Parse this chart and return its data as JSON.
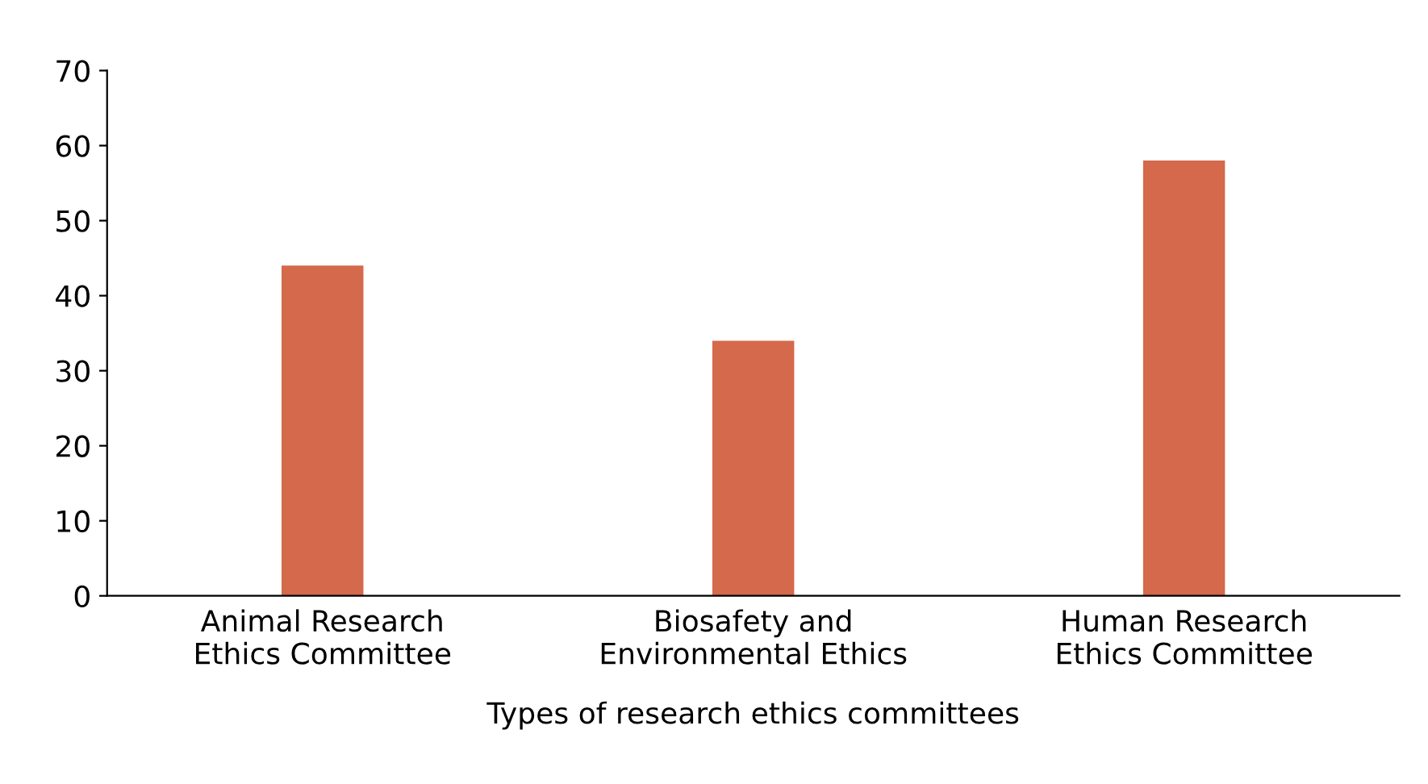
{
  "chart_data": {
    "type": "bar",
    "xlabel": "Types of research ethics committees",
    "categories": [
      "Animal Research\nEthics Committee",
      "Biosafety and\nEnvironmental Ethics",
      "Human Research\nEthics Committee"
    ],
    "values": [
      44,
      34,
      58
    ],
    "color": "#d4694b",
    "ylim": [
      0,
      70
    ],
    "yticks": [
      0,
      10,
      20,
      30,
      40,
      50,
      60,
      70
    ],
    "grid": false,
    "legend": false
  }
}
